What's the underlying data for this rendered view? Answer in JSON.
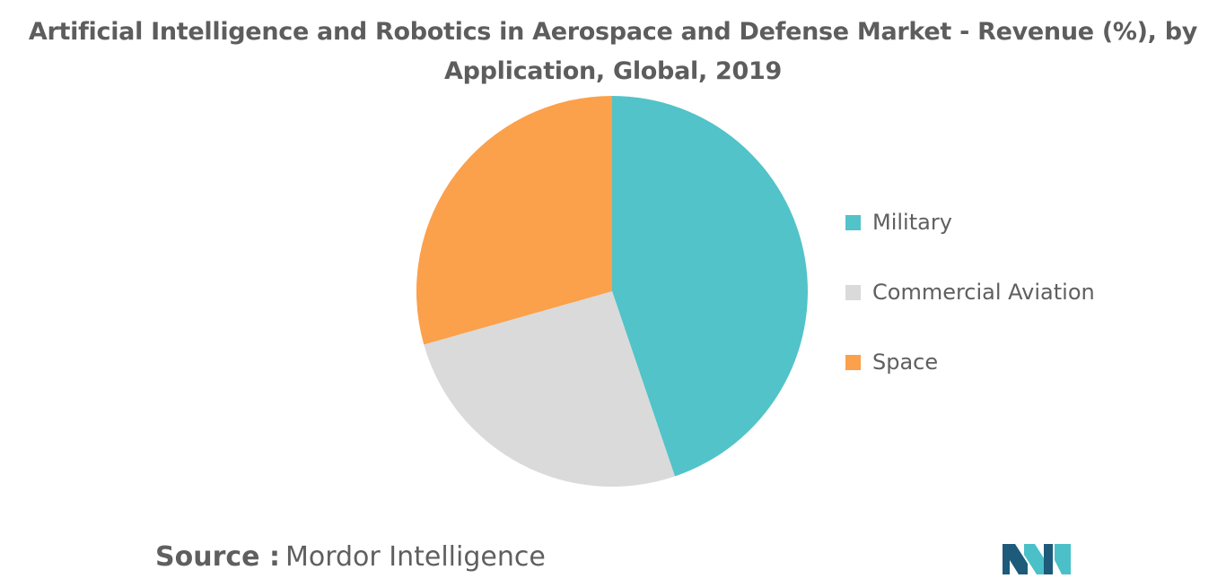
{
  "title_line1": "Artificial Intelligence and Robotics in Aerospace and Defense Market - Revenue (%), by",
  "title_line2": "Application, Global, 2019",
  "source": {
    "label": "Source :",
    "value": "Mordor Intelligence"
  },
  "colors": {
    "military": "#52c3c8",
    "commercial_aviation": "#dadada",
    "space": "#fba04b",
    "logo_dark": "#1e5a7a",
    "logo_teal": "#4bc0c9"
  },
  "chart_data": {
    "type": "pie",
    "title": "Artificial Intelligence and Robotics in Aerospace and Defense Market - Revenue (%), by Application, Global, 2019",
    "categories": [
      "Military",
      "Commercial Aviation",
      "Space"
    ],
    "values": [
      44.8,
      25.8,
      29.4
    ],
    "unit": "%",
    "start_angle": "12 o'clock",
    "direction": "clockwise",
    "legend_placement": "right"
  }
}
